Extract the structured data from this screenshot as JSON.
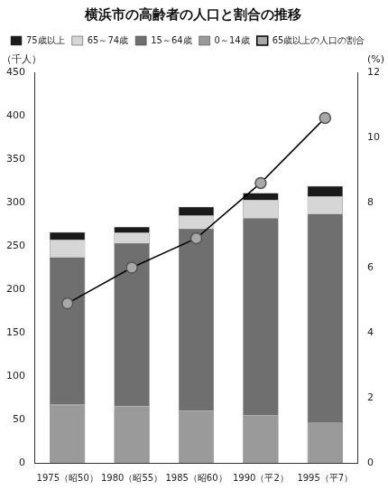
{
  "chart_data": {
    "type": "bar",
    "title": "横浜市の高齢者の人口と割合の推移",
    "y_label": "（千人）",
    "y2_label": "(%)",
    "categories": [
      "1975（昭50）",
      "1980（昭55）",
      "1985（昭60）",
      "1990（平2）",
      "1995（平7）"
    ],
    "series": [
      {
        "name": "0～14歳",
        "color": "#9a9a9a",
        "values": [
          67,
          65,
          60,
          55,
          47
        ]
      },
      {
        "name": "15～64歳",
        "color": "#6f6f6f",
        "values": [
          170,
          188,
          210,
          227,
          240
        ]
      },
      {
        "name": "65～74歳",
        "color": "#d6d6d6",
        "values": [
          20,
          12,
          15,
          21,
          20
        ]
      },
      {
        "name": "75歳以上",
        "color": "#1a1a1a",
        "values": [
          9,
          7,
          10,
          8,
          12
        ]
      },
      {
        "name": "65歳以上の人口の割合",
        "type": "line",
        "axis": "y2",
        "color": "#000000",
        "marker": "circle",
        "values": [
          4.9,
          6.0,
          6.9,
          8.6,
          10.6
        ]
      }
    ],
    "stacked": true,
    "ylim": [
      0,
      450
    ],
    "yticks": [
      0,
      50,
      100,
      150,
      200,
      250,
      300,
      350,
      400,
      450
    ],
    "y2lim": [
      0,
      12
    ],
    "y2ticks": [
      0,
      2,
      4,
      6,
      8,
      10,
      12
    ],
    "grid": false,
    "legend": "top-left"
  }
}
